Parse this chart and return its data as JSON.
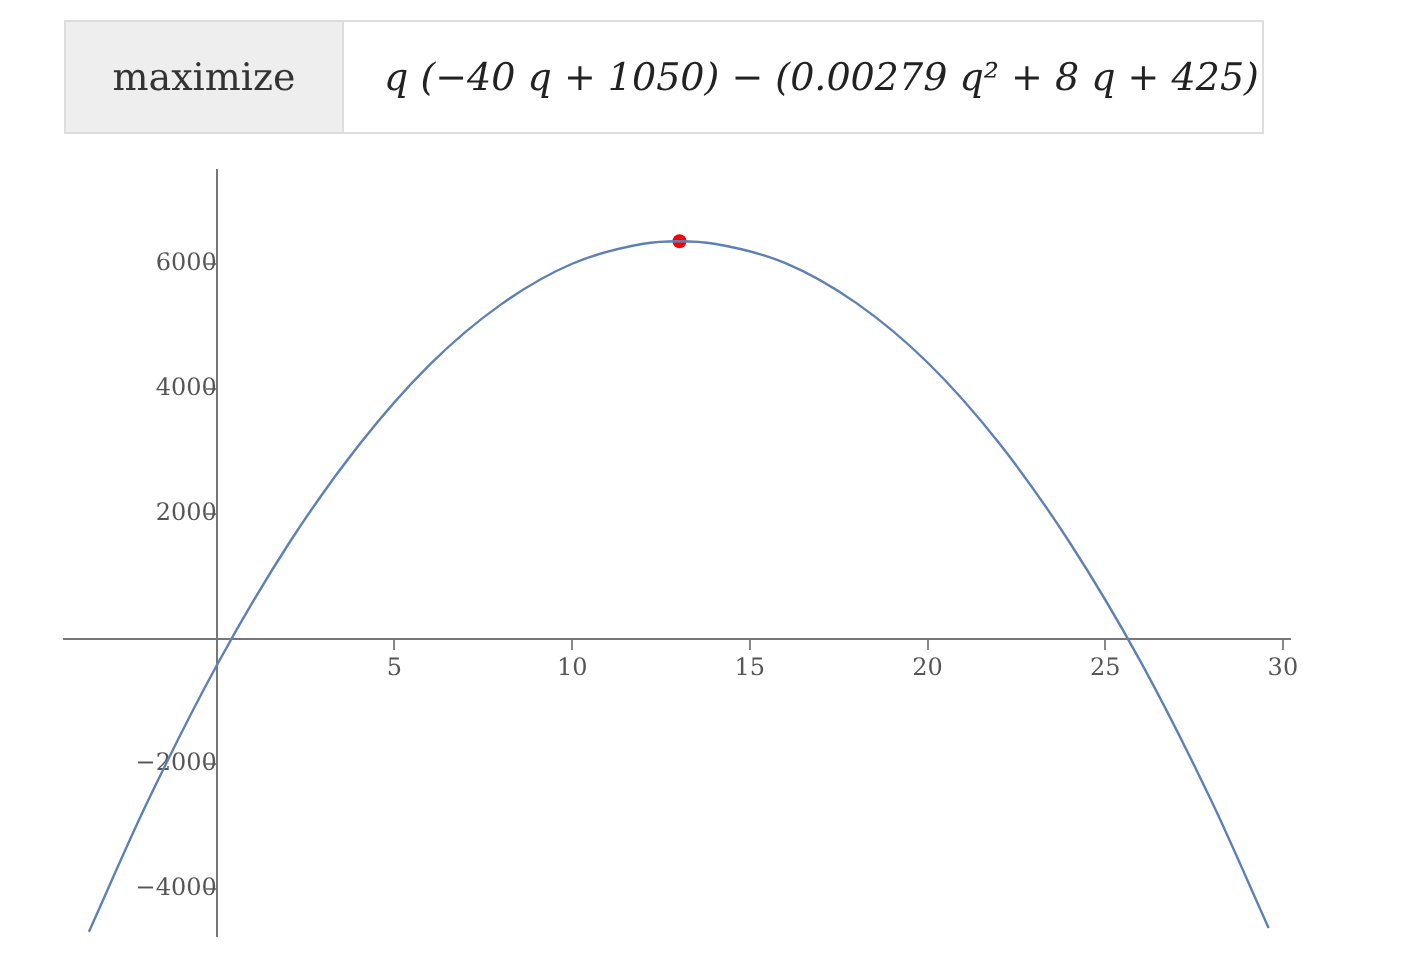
{
  "chart_data": {
    "type": "line",
    "title": "maximize",
    "subtitle": "q (−40 q + 1050) − (0.00279 q² + 8 q + 425)",
    "xlim": [
      -4.3,
      30.2
    ],
    "ylim": [
      -4750,
      7500
    ],
    "xticks": [
      5,
      10,
      15,
      20,
      25,
      30
    ],
    "yticks": [
      {
        "value": -4000,
        "label": "−4000"
      },
      {
        "value": -2000,
        "label": "−2000"
      },
      2000,
      4000,
      6000
    ],
    "grid": false,
    "series": [
      {
        "color": "#5e81b5",
        "x": [
          -3.6,
          -2,
          0,
          2,
          4,
          6,
          8,
          10,
          12,
          13,
          14,
          16,
          18,
          20,
          22,
          24,
          26,
          28,
          29.6
        ],
        "values": [
          -4690,
          -2670,
          -425,
          1500,
          3100,
          4390,
          5350,
          6000,
          6320,
          6360,
          6320,
          6010,
          5370,
          4420,
          3140,
          1540,
          -370,
          -2610,
          -4630
        ]
      },
      {
        "type": "scatter",
        "marker": "circle",
        "color": "#ff0000",
        "x": [
          13.02
        ],
        "values": [
          6360
        ]
      }
    ]
  }
}
